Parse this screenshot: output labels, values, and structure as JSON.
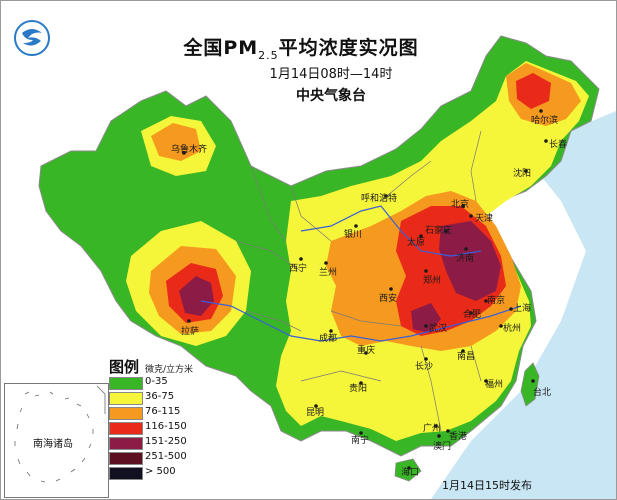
{
  "title": {
    "main": "全国PM",
    "subscript": "2.5",
    "suffix": "平均浓度实况图",
    "time_range": "1月14日08时—14时",
    "issuer": "中央气象台"
  },
  "legend": {
    "title": "图例",
    "unit": "微克/立方米",
    "items": [
      {
        "label": "0-35",
        "color": "#39b626"
      },
      {
        "label": "36-75",
        "color": "#f5f53a"
      },
      {
        "label": "76-115",
        "color": "#f59a1f"
      },
      {
        "label": "116-150",
        "color": "#ea2a18"
      },
      {
        "label": "151-250",
        "color": "#8c1c45"
      },
      {
        "label": "251-500",
        "color": "#5c1020"
      },
      {
        "label": "> 500",
        "color": "#101020"
      }
    ]
  },
  "inset": {
    "label": "南海诸岛"
  },
  "release": "1月14日15时发布",
  "cities": {
    "wulumuqi": "乌鲁木齐",
    "lasa": "拉萨",
    "haerbin": "哈尔滨",
    "changchun": "长春",
    "shenyang": "沈阳",
    "huhehaote": "呼和浩特",
    "beijing": "北京",
    "tianjin": "天津",
    "yinchuan": "银川",
    "taiyuan": "太原",
    "shijiazhuang": "石家庄",
    "jinan": "济南",
    "xining": "西宁",
    "lanzhou": "兰州",
    "zhengzhou": "郑州",
    "xian": "西安",
    "nanjing": "南京",
    "hefei": "合肥",
    "shanghai": "上海",
    "chengdu": "成都",
    "wuhan": "武汉",
    "hangzhou": "杭州",
    "chongqing": "重庆",
    "changsha": "长沙",
    "nanchang": "南昌",
    "guiyang": "贵阳",
    "fuzhou": "福州",
    "kunming": "昆明",
    "taibei": "台北",
    "nanning": "南宁",
    "guangzhou": "广州",
    "haikou": "海口",
    "xianggang": "香港",
    "aomen": "澳门"
  }
}
